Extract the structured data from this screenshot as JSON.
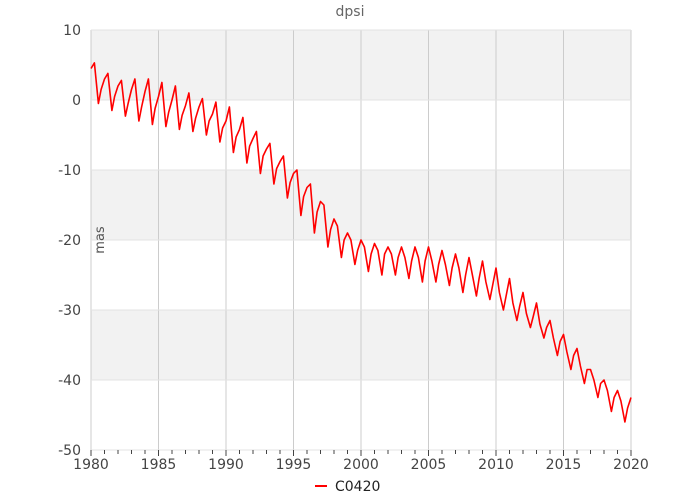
{
  "chart_data": {
    "type": "line",
    "title": "dpsi",
    "xlabel": "",
    "ylabel": "mas",
    "xlim": [
      1980,
      2020
    ],
    "ylim": [
      -50,
      10
    ],
    "xticks": [
      1980,
      1985,
      1990,
      1995,
      2000,
      2005,
      2010,
      2015,
      2020
    ],
    "yticks": [
      10,
      0,
      -10,
      -20,
      -30,
      -40,
      -50
    ],
    "grid": true,
    "legend_position": "bottom-center",
    "series": [
      {
        "name": "C0420",
        "color": "#ff0000",
        "x": [
          1980.0,
          1980.25,
          1980.55,
          1980.75,
          1981.0,
          1981.25,
          1981.55,
          1981.75,
          1982.0,
          1982.25,
          1982.55,
          1982.75,
          1983.0,
          1983.25,
          1983.55,
          1983.75,
          1984.0,
          1984.25,
          1984.55,
          1984.75,
          1985.0,
          1985.25,
          1985.55,
          1985.75,
          1986.0,
          1986.25,
          1986.55,
          1986.75,
          1987.0,
          1987.25,
          1987.55,
          1987.75,
          1988.0,
          1988.25,
          1988.55,
          1988.75,
          1989.0,
          1989.25,
          1989.55,
          1989.75,
          1990.0,
          1990.25,
          1990.55,
          1990.75,
          1991.0,
          1991.25,
          1991.55,
          1991.75,
          1992.0,
          1992.25,
          1992.55,
          1992.75,
          1993.0,
          1993.25,
          1993.55,
          1993.75,
          1994.0,
          1994.25,
          1994.55,
          1994.75,
          1995.0,
          1995.25,
          1995.55,
          1995.75,
          1996.0,
          1996.25,
          1996.55,
          1996.75,
          1997.0,
          1997.25,
          1997.55,
          1997.75,
          1998.0,
          1998.25,
          1998.55,
          1998.75,
          1999.0,
          1999.25,
          1999.55,
          1999.75,
          2000.0,
          2000.25,
          2000.55,
          2000.75,
          2001.0,
          2001.25,
          2001.55,
          2001.75,
          2002.0,
          2002.25,
          2002.55,
          2002.75,
          2003.0,
          2003.25,
          2003.55,
          2003.75,
          2004.0,
          2004.25,
          2004.55,
          2004.75,
          2005.0,
          2005.25,
          2005.55,
          2005.75,
          2006.0,
          2006.25,
          2006.55,
          2006.75,
          2007.0,
          2007.25,
          2007.55,
          2007.75,
          2008.0,
          2008.25,
          2008.55,
          2008.75,
          2009.0,
          2009.25,
          2009.55,
          2009.75,
          2010.0,
          2010.25,
          2010.55,
          2010.75,
          2011.0,
          2011.25,
          2011.55,
          2011.75,
          2012.0,
          2012.25,
          2012.55,
          2012.75,
          2013.0,
          2013.25,
          2013.55,
          2013.75,
          2014.0,
          2014.25,
          2014.55,
          2014.75,
          2015.0,
          2015.25,
          2015.55,
          2015.75,
          2016.0,
          2016.25,
          2016.55,
          2016.75,
          2017.0,
          2017.25,
          2017.55,
          2017.75,
          2018.0,
          2018.25,
          2018.55,
          2018.75,
          2019.0,
          2019.25,
          2019.55,
          2019.75,
          2020.0
        ],
        "y": [
          4.5,
          5.3,
          -0.5,
          1.5,
          3.0,
          3.8,
          -1.5,
          0.5,
          2.0,
          2.8,
          -2.3,
          -0.5,
          1.5,
          3.0,
          -3.0,
          -1.0,
          1.2,
          3.0,
          -3.5,
          -1.2,
          0.5,
          2.5,
          -3.8,
          -1.8,
          0.0,
          2.0,
          -4.2,
          -2.2,
          -0.8,
          1.0,
          -4.5,
          -2.6,
          -1.0,
          0.2,
          -5.0,
          -3.0,
          -2.0,
          -0.3,
          -6.0,
          -4.0,
          -3.0,
          -1.0,
          -7.5,
          -5.3,
          -4.2,
          -2.5,
          -9.0,
          -6.6,
          -5.5,
          -4.5,
          -10.5,
          -8.0,
          -7.0,
          -6.2,
          -12.0,
          -9.8,
          -8.8,
          -8.0,
          -14.0,
          -11.8,
          -10.5,
          -10.0,
          -16.5,
          -13.8,
          -12.5,
          -12.0,
          -19.0,
          -16.0,
          -14.5,
          -15.0,
          -21.0,
          -18.5,
          -17.0,
          -18.0,
          -22.5,
          -20.0,
          -19.0,
          -20.0,
          -23.5,
          -21.5,
          -20.0,
          -21.0,
          -24.5,
          -22.0,
          -20.5,
          -21.5,
          -25.0,
          -22.0,
          -21.0,
          -22.0,
          -25.0,
          -22.5,
          -21.0,
          -22.5,
          -25.5,
          -23.0,
          -21.0,
          -22.5,
          -26.0,
          -23.0,
          -21.0,
          -23.0,
          -26.0,
          -23.5,
          -21.5,
          -23.5,
          -26.5,
          -24.0,
          -22.0,
          -24.0,
          -27.5,
          -25.0,
          -22.5,
          -25.0,
          -28.0,
          -25.5,
          -23.0,
          -26.0,
          -28.5,
          -26.5,
          -24.0,
          -27.5,
          -30.0,
          -28.0,
          -25.5,
          -29.0,
          -31.5,
          -29.5,
          -27.5,
          -30.5,
          -32.5,
          -31.0,
          -29.0,
          -32.0,
          -34.0,
          -32.5,
          -31.5,
          -34.0,
          -36.5,
          -34.5,
          -33.5,
          -36.0,
          -38.5,
          -36.5,
          -35.5,
          -38.0,
          -40.5,
          -38.5,
          -38.5,
          -40.0,
          -42.5,
          -40.5,
          -40.0,
          -41.5,
          -44.5,
          -42.5,
          -41.5,
          -43.0,
          -46.0,
          -44.0,
          -42.5
        ]
      }
    ]
  }
}
